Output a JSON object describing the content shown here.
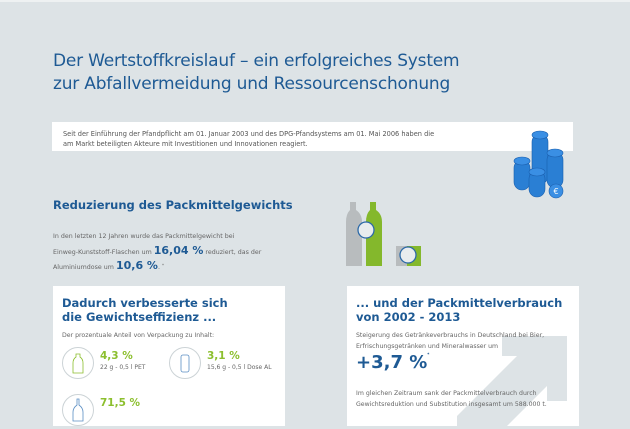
{
  "title": {
    "line1": "Der Wertstoffkreislauf – ein erfolgreiches System",
    "line2": "zur Abfallvermeidung und Ressourcenschonung"
  },
  "intro": {
    "line1": "Seit der Einführung der Pfandpflicht am 01. Januar 2003 und des DPG-Pfandsystems am 01. Mai 2006 haben die",
    "line2": "am Markt beteiligten Akteure mit Investitionen und Innovationen reagiert.",
    "icon": "euro-coins-icon"
  },
  "reduction": {
    "heading": "Reduzierung des Packmittelgewichts",
    "text1": "In den letzten 12 Jahren wurde das Packmittelgewicht bei",
    "text2a": "Einweg-Kunststoff-Flaschen um",
    "value1": "16,04 %",
    "text2b": "reduziert, das der",
    "text3a": "Aluminiumdose um",
    "value2": "10,6 %",
    "text3b": ".",
    "footnote": "*",
    "icon": "bottles-cans-comparison-icon"
  },
  "efficiency": {
    "heading1": "Dadurch verbesserte sich",
    "heading2": "die Gewichtseffizienz ...",
    "subtitle": "Der prozentuale Anteil von Verpackung zu Inhalt:",
    "items": [
      {
        "percent": "4,3 %",
        "desc": "22 g - 0,5 l PET",
        "icon": "pet-bottle-icon"
      },
      {
        "percent": "3,1 %",
        "desc": "15,6 g - 0,5 l Dose AL",
        "icon": "can-icon"
      },
      {
        "percent": "71,5 %",
        "desc": "",
        "icon": "glass-bottle-icon"
      }
    ]
  },
  "consumption": {
    "heading1": "... und der Packmittelverbrauch",
    "heading2": "von 2002 - 2013",
    "text1": "Steigerung des Getränkeverbrauchs in Deutschland bei Bier,",
    "text2": "Erfrischungsgetränken und Mineralwasser um",
    "value": "+3,7 %",
    "footnote": "*",
    "text3": "Im gleichen Zeitraum sank der Packmittelverbrauch durch",
    "text4": "Gewichtsreduktion und Substitution insgesamt um 588.000 t.",
    "icon": "arrow-up-right-icon"
  },
  "colors": {
    "primary_blue": "#1e5a94",
    "accent_green": "#8cbf2e",
    "background": "#dde3e6"
  }
}
